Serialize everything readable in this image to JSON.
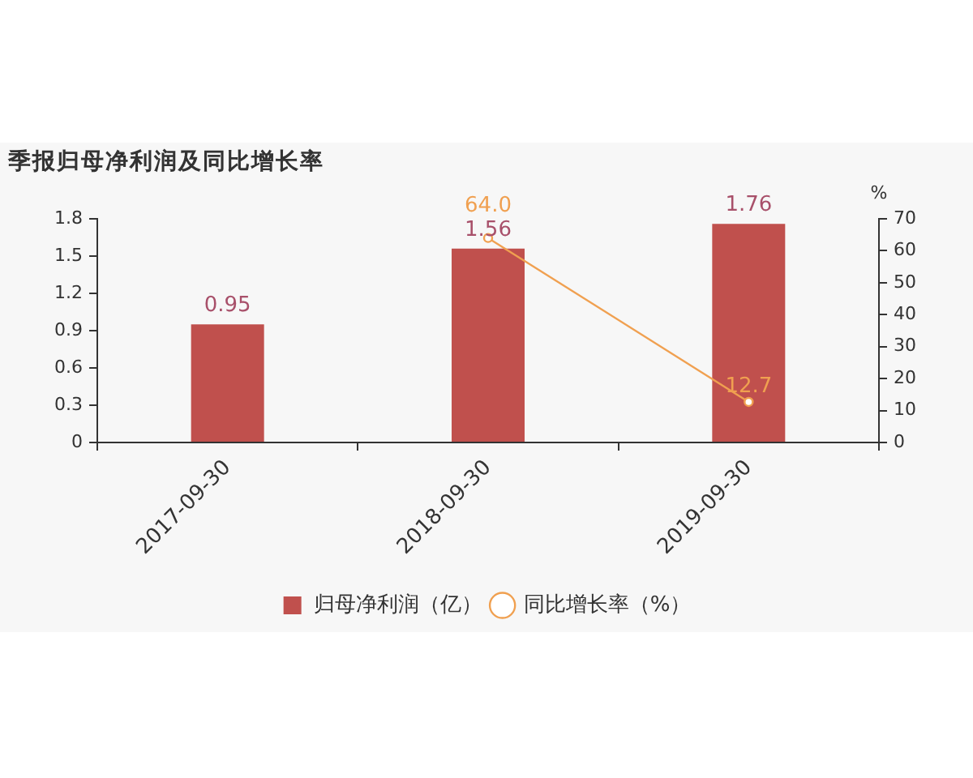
{
  "chart_data": {
    "type": "bar",
    "title": "季报归母净利润及同比增长率",
    "y2label": "%",
    "categories": [
      "2017-09-30",
      "2018-09-30",
      "2019-09-30"
    ],
    "series": [
      {
        "name": "归母净利润（亿）",
        "color": "#c0504d",
        "values": [
          0.95,
          1.56,
          1.76
        ]
      },
      {
        "name": "同比增长率（%）",
        "type": "line",
        "axis": "y2",
        "color": "#f0a050",
        "values": [
          null,
          64.0,
          12.7
        ],
        "value_labels": [
          null,
          "64.0",
          "12.7"
        ]
      }
    ],
    "ylim": [
      0,
      1.8
    ],
    "yticks": [
      0,
      0.3,
      0.6,
      0.9,
      1.2,
      1.5,
      1.8
    ],
    "y2lim": [
      0,
      70
    ],
    "y2ticks": [
      0,
      10,
      20,
      30,
      40,
      50,
      60,
      70
    ],
    "data_labels": true,
    "grid": false,
    "legend": "bottom",
    "marker": "circle",
    "line_style": "solid"
  }
}
